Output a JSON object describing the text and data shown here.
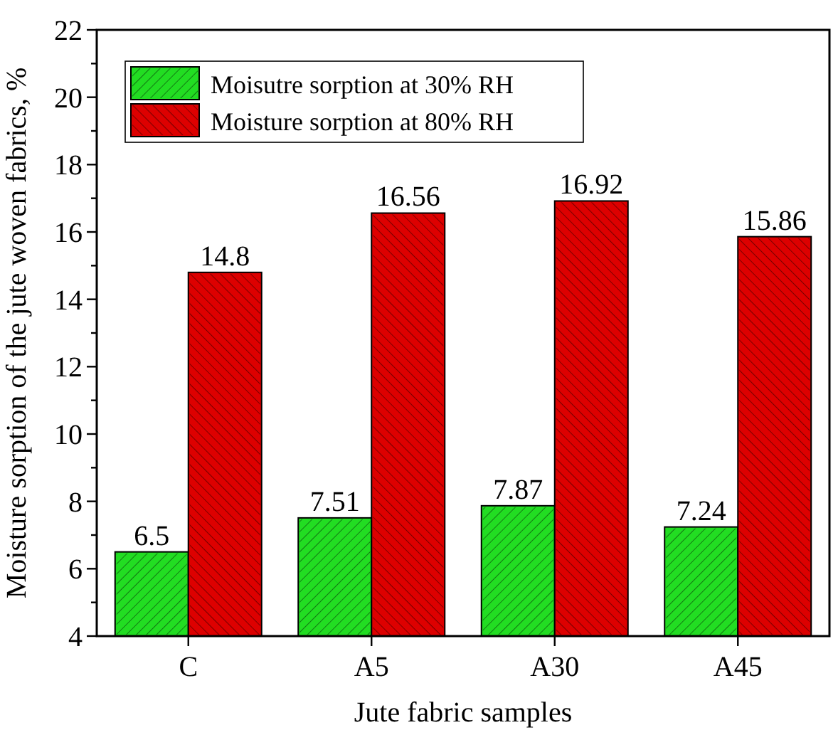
{
  "chart_data": {
    "type": "bar",
    "xlabel": "Jute fabric samples",
    "ylabel": "Moisture sorption of the jute woven fabrics, %",
    "categories": [
      "C",
      "A5",
      "A30",
      "A45"
    ],
    "series": [
      {
        "name": "Moisutre sorption at 30% RH",
        "color": "#22dd22",
        "values": [
          6.5,
          7.51,
          7.87,
          7.24
        ]
      },
      {
        "name": "Moisture sorption at 80% RH",
        "color": "#dd0000",
        "values": [
          14.8,
          16.56,
          16.92,
          15.86
        ]
      }
    ],
    "ylim": [
      4,
      22
    ],
    "yticks": [
      4,
      {
        "value": 5,
        "label": null
      },
      6,
      {
        "value": 7,
        "label": null
      },
      8,
      {
        "value": 9,
        "label": null
      },
      10,
      {
        "value": 11,
        "label": null
      },
      12,
      {
        "value": 13,
        "label": null
      },
      14,
      {
        "value": 15,
        "label": null
      },
      16,
      {
        "value": 17,
        "label": null
      },
      18,
      {
        "value": 19,
        "label": null
      },
      20,
      {
        "value": 21,
        "label": null
      },
      22
    ],
    "data_labels": true,
    "legend": "top left",
    "grid": false
  }
}
